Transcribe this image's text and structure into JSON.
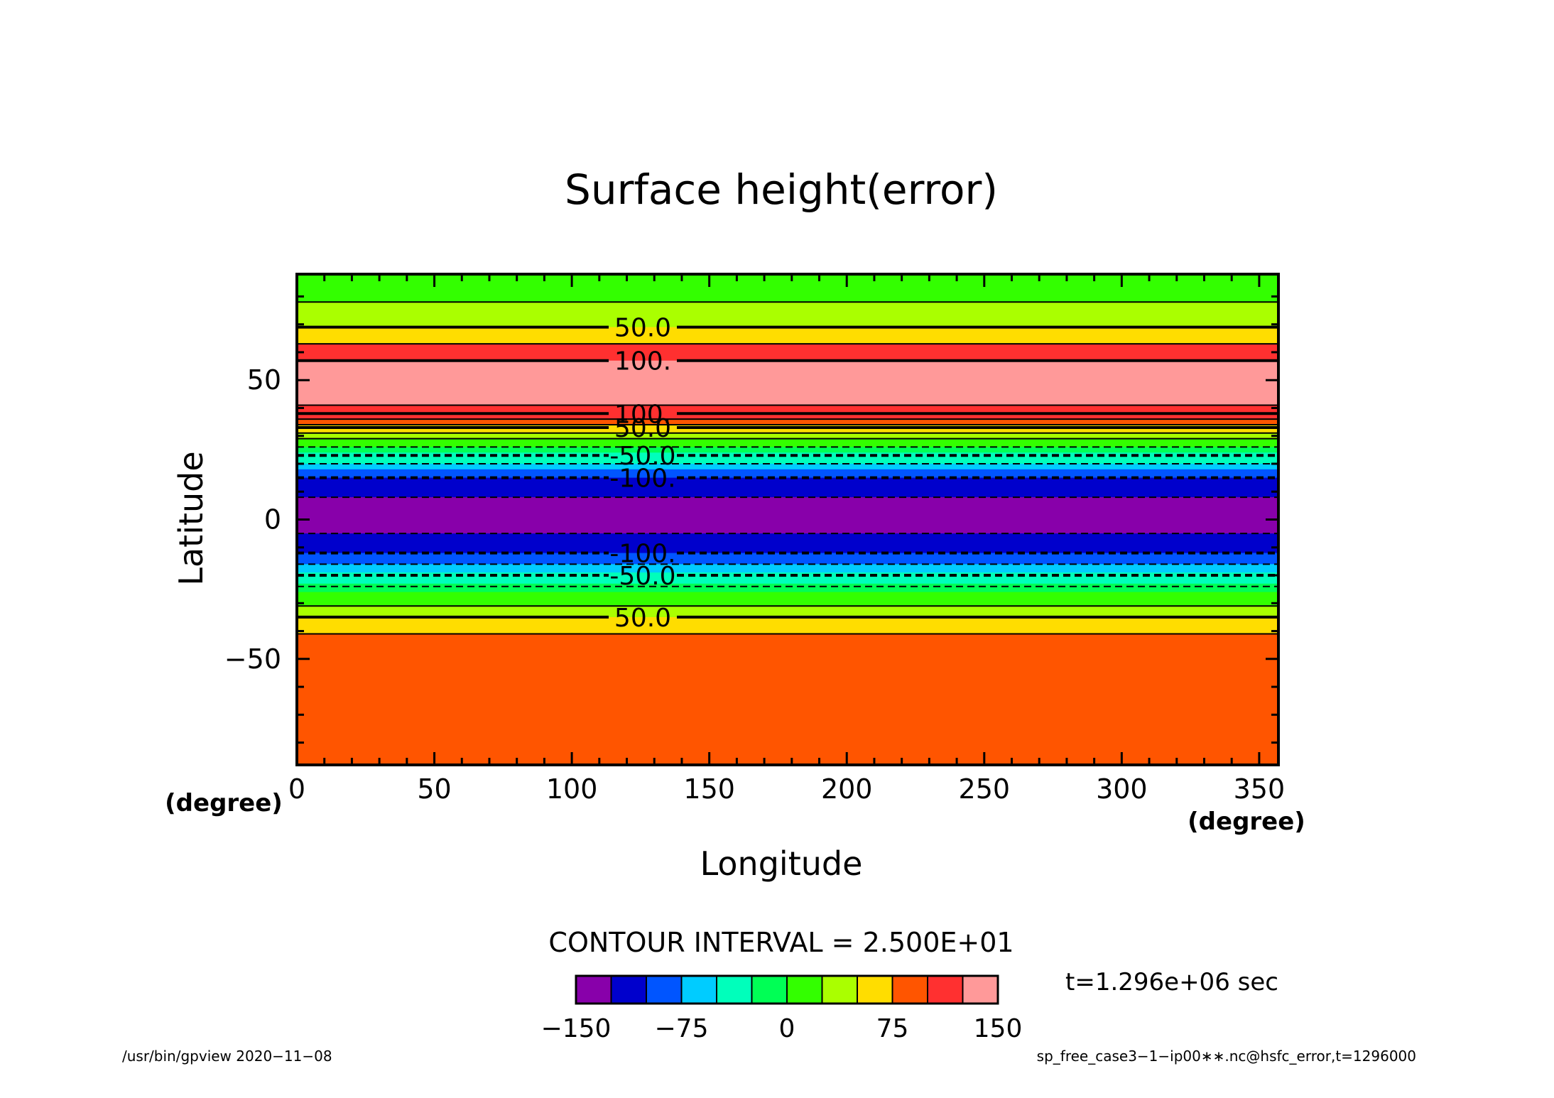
{
  "chart_data": {
    "type": "heatmap",
    "title": "Surface height(error)",
    "xlabel": "Longitude",
    "ylabel": "Latitude",
    "xunit": "(degree)",
    "yunit": "(degree)",
    "xlim": [
      0,
      357
    ],
    "ylim": [
      -88,
      88
    ],
    "xticks": [
      0,
      50,
      100,
      150,
      200,
      250,
      300,
      350
    ],
    "yticks": [
      -50,
      0,
      50
    ],
    "bands": [
      {
        "lat_from": 78,
        "lat_to": 88,
        "color": "#33ff00"
      },
      {
        "lat_from": 69,
        "lat_to": 78,
        "color": "#aaff00"
      },
      {
        "lat_from": 63,
        "lat_to": 69,
        "color": "#ffdd00"
      },
      {
        "lat_from": 57,
        "lat_to": 63,
        "color": "#ff3030"
      },
      {
        "lat_from": 41,
        "lat_to": 57,
        "color": "#ff9999"
      },
      {
        "lat_from": 36,
        "lat_to": 41,
        "color": "#ff3030"
      },
      {
        "lat_from": 34,
        "lat_to": 36,
        "color": "#ff5500"
      },
      {
        "lat_from": 31,
        "lat_to": 34,
        "color": "#ffdd00"
      },
      {
        "lat_from": 29,
        "lat_to": 31,
        "color": "#aaff00"
      },
      {
        "lat_from": 26,
        "lat_to": 29,
        "color": "#33ff00"
      },
      {
        "lat_from": 24,
        "lat_to": 26,
        "color": "#00ff55"
      },
      {
        "lat_from": 20,
        "lat_to": 24,
        "color": "#00ffbb"
      },
      {
        "lat_from": 18,
        "lat_to": 20,
        "color": "#00ccff"
      },
      {
        "lat_from": 15,
        "lat_to": 18,
        "color": "#0055ff"
      },
      {
        "lat_from": 8,
        "lat_to": 15,
        "color": "#0000cc"
      },
      {
        "lat_from": -5,
        "lat_to": 8,
        "color": "#8800aa"
      },
      {
        "lat_from": -12,
        "lat_to": -5,
        "color": "#0000cc"
      },
      {
        "lat_from": -16,
        "lat_to": -12,
        "color": "#0055ff"
      },
      {
        "lat_from": -19,
        "lat_to": -16,
        "color": "#00ccff"
      },
      {
        "lat_from": -23,
        "lat_to": -19,
        "color": "#00ffbb"
      },
      {
        "lat_from": -26,
        "lat_to": -23,
        "color": "#00ff55"
      },
      {
        "lat_from": -31,
        "lat_to": -26,
        "color": "#33ff00"
      },
      {
        "lat_from": -35,
        "lat_to": -31,
        "color": "#aaff00"
      },
      {
        "lat_from": -41,
        "lat_to": -35,
        "color": "#ffdd00"
      },
      {
        "lat_from": -88,
        "lat_to": -41,
        "color": "#ff5500"
      }
    ],
    "contours": [
      {
        "lat": 78,
        "dashed": false,
        "thick": false
      },
      {
        "lat": 69,
        "dashed": false,
        "thick": true,
        "label": "50.0"
      },
      {
        "lat": 63,
        "dashed": false,
        "thick": false
      },
      {
        "lat": 57,
        "dashed": false,
        "thick": true,
        "label": "100."
      },
      {
        "lat": 41,
        "dashed": false,
        "thick": false
      },
      {
        "lat": 38,
        "dashed": false,
        "thick": true,
        "label": "100."
      },
      {
        "lat": 36,
        "dashed": false,
        "thick": false
      },
      {
        "lat": 34,
        "dashed": false,
        "thick": false
      },
      {
        "lat": 33,
        "dashed": false,
        "thick": true,
        "label": "50.0"
      },
      {
        "lat": 31,
        "dashed": false,
        "thick": false
      },
      {
        "lat": 29,
        "dashed": false,
        "thick": false
      },
      {
        "lat": 26,
        "dashed": true,
        "thick": false
      },
      {
        "lat": 23,
        "dashed": true,
        "thick": true,
        "label": "-50.0"
      },
      {
        "lat": 20,
        "dashed": true,
        "thick": false
      },
      {
        "lat": 15,
        "dashed": true,
        "thick": true,
        "label": "-100."
      },
      {
        "lat": 8,
        "dashed": true,
        "thick": false
      },
      {
        "lat": -5,
        "dashed": true,
        "thick": false
      },
      {
        "lat": -12,
        "dashed": true,
        "thick": true,
        "label": "-100."
      },
      {
        "lat": -16,
        "dashed": true,
        "thick": false
      },
      {
        "lat": -20,
        "dashed": true,
        "thick": true,
        "label": "-50.0"
      },
      {
        "lat": -24,
        "dashed": true,
        "thick": false
      },
      {
        "lat": -31,
        "dashed": false,
        "thick": false
      },
      {
        "lat": -35,
        "dashed": false,
        "thick": true,
        "label": "50.0"
      },
      {
        "lat": -41,
        "dashed": false,
        "thick": false
      }
    ],
    "colorbar": {
      "colors": [
        "#8800aa",
        "#0000cc",
        "#0055ff",
        "#00ccff",
        "#00ffbb",
        "#00ff55",
        "#33ff00",
        "#aaff00",
        "#ffdd00",
        "#ff5500",
        "#ff3030",
        "#ff9999"
      ],
      "range": [
        -150,
        150
      ],
      "tick_values": [
        -150,
        -75,
        0,
        75,
        150
      ],
      "tick_labels": [
        "−150",
        "−75",
        "0",
        "75",
        "150"
      ]
    },
    "contour_interval": "CONTOUR INTERVAL = 2.500E+01",
    "time_label": "t=1.296e+06 sec",
    "footer_left": "/usr/bin/gpview   2020−11−08",
    "footer_right": "sp_free_case3−1−ip00∗∗.nc@hsfc_error,t=1296000",
    "xtick_labels": [
      "0",
      "50",
      "100",
      "150",
      "200",
      "250",
      "300",
      "350"
    ],
    "ytick_labels": [
      "−50",
      "0",
      "50"
    ]
  }
}
